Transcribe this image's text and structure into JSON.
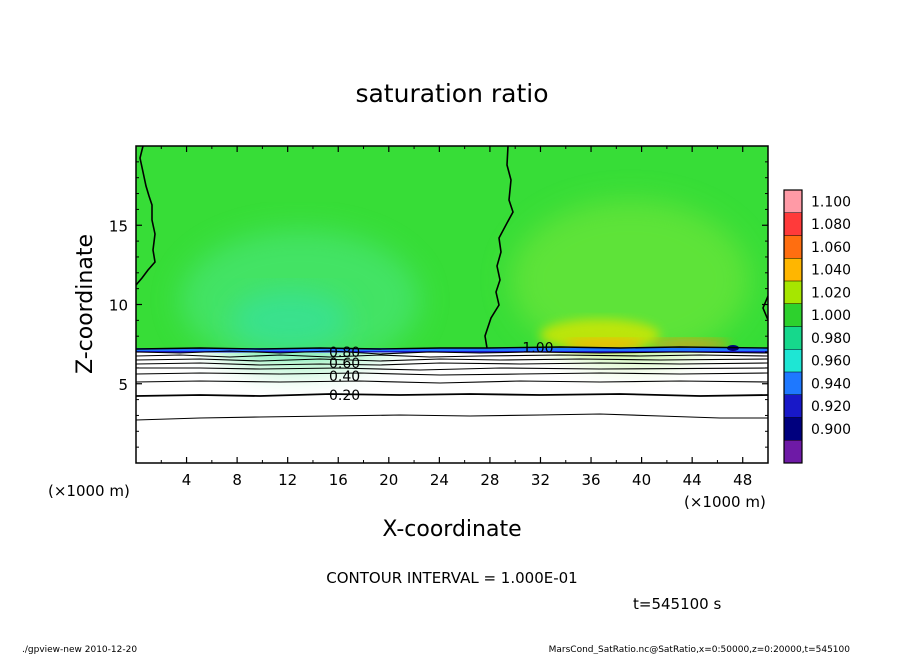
{
  "chart_data": {
    "type": "heatmap",
    "title": "saturation ratio",
    "xlabel": "X-coordinate",
    "ylabel": "Z-coordinate",
    "x_unit": "(×1000 m)",
    "y_unit": "(×1000 m)",
    "xlim": [
      0,
      50
    ],
    "ylim": [
      0,
      20
    ],
    "x_ticks": [
      4,
      8,
      12,
      16,
      20,
      24,
      28,
      32,
      36,
      40,
      44,
      48
    ],
    "y_ticks": [
      5,
      10,
      15
    ],
    "contour_labels": [
      {
        "text": "0.80",
        "x": 16.5,
        "z": 7.0
      },
      {
        "text": "0.60",
        "x": 16.5,
        "z": 6.3
      },
      {
        "text": "0.40",
        "x": 16.5,
        "z": 5.5
      },
      {
        "text": "0.20",
        "x": 16.5,
        "z": 4.3
      },
      {
        "text": "1.00",
        "x": 31.8,
        "z": 7.3
      }
    ],
    "colorbar": {
      "levels": [
        "1.100",
        "1.080",
        "1.060",
        "1.040",
        "1.020",
        "1.000",
        "0.980",
        "0.960",
        "0.940",
        "0.920",
        "0.900"
      ],
      "colors": [
        "#ff9aa6",
        "#ff3a3a",
        "#ff6e10",
        "#ffb600",
        "#a6e600",
        "#2dd12d",
        "#16d88c",
        "#1ee6d4",
        "#1e78ff",
        "#1818c8",
        "#00007e",
        "#6e1aa6"
      ]
    },
    "background_color": "#37dd37",
    "contour_interval_text": "CONTOUR INTERVAL = 1.000E-01",
    "time_text": "t=545100 s"
  },
  "footer": {
    "left": "./gpview-new   2010-12-20",
    "right": "MarsCond_SatRatio.nc@SatRatio,x=0:50000,z=0:20000,t=545100"
  }
}
